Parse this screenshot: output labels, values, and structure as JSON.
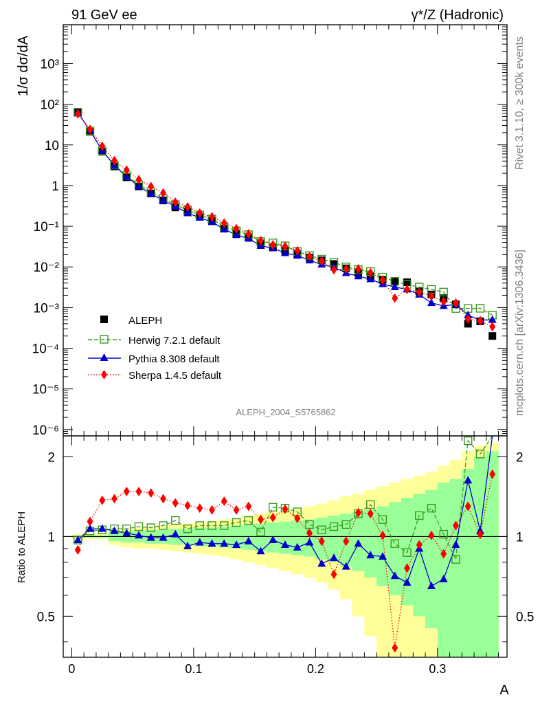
{
  "header": {
    "left": "91 GeV ee",
    "right": "γ*/Z (Hadronic)"
  },
  "side_labels": {
    "rivet": "Rivet 3.1.10, ≥ 300k events",
    "mcplots": "mcplots.cern.ch [arXiv:1306.3436]"
  },
  "analysis_id": "ALEPH_2004_S5765862",
  "colors": {
    "data": "#000000",
    "herwig": "#3a9a1e",
    "pythia": "#0000cc",
    "sherpa": "#ff0000",
    "band_yellow": "#ffff99",
    "band_green": "#99ff99"
  },
  "chart_data": [
    {
      "type": "scatter",
      "title": "",
      "xlabel": "A",
      "ylabel": "1/σ  dσ/dA",
      "xlim": [
        -0.007,
        0.357
      ],
      "ylim": [
        7e-07,
        9000
      ],
      "yscale": "log",
      "x_ticks": [
        "0",
        "0.1",
        "0.2",
        "0.3"
      ],
      "y_ticks": [
        "10⁻⁶",
        "10⁻⁵",
        "10⁻⁴",
        "10⁻³",
        "10⁻²",
        "10⁻¹",
        "1",
        "10",
        "10²",
        "10³"
      ],
      "legend_position": "lower-left",
      "x": [
        0.005,
        0.015,
        0.025,
        0.035,
        0.045,
        0.055,
        0.065,
        0.075,
        0.085,
        0.095,
        0.105,
        0.115,
        0.125,
        0.135,
        0.145,
        0.155,
        0.165,
        0.175,
        0.185,
        0.195,
        0.205,
        0.215,
        0.225,
        0.235,
        0.245,
        0.255,
        0.265,
        0.275,
        0.285,
        0.295,
        0.305,
        0.315,
        0.325,
        0.335,
        0.345
      ],
      "series": [
        {
          "name": "ALEPH",
          "values": [
            65,
            21,
            6.8,
            2.95,
            1.6,
            0.95,
            0.64,
            0.43,
            0.29,
            0.23,
            0.17,
            0.135,
            0.087,
            0.065,
            0.052,
            0.038,
            0.03,
            0.025,
            0.021,
            0.017,
            0.0145,
            0.0118,
            0.0092,
            0.0071,
            0.0059,
            0.0048,
            0.0045,
            0.0042,
            0.0025,
            0.0021,
            0.0017,
            0.0012,
            0.0004,
            0.00046,
            0.0002
          ]
        },
        {
          "name": "Herwig 7.2.1 default",
          "values": [
            63,
            22,
            7.2,
            3.2,
            1.75,
            1.05,
            0.71,
            0.48,
            0.34,
            0.25,
            0.19,
            0.15,
            0.098,
            0.077,
            0.062,
            0.042,
            0.039,
            0.033,
            0.024,
            0.019,
            0.0155,
            0.013,
            0.01,
            0.0086,
            0.0077,
            0.0056,
            0.0044,
            0.0037,
            0.0032,
            0.0028,
            0.0024,
            0.00095,
            0.00095,
            0.00096,
            0.00065
          ]
        },
        {
          "name": "Pythia 8.308 default",
          "values": [
            63,
            22.5,
            7.3,
            3.1,
            1.65,
            0.96,
            0.63,
            0.43,
            0.31,
            0.21,
            0.163,
            0.127,
            0.085,
            0.061,
            0.05,
            0.033,
            0.029,
            0.022,
            0.019,
            0.0145,
            0.0115,
            0.0098,
            0.0071,
            0.0059,
            0.005,
            0.0038,
            0.0032,
            0.0028,
            0.0021,
            0.0013,
            0.0011,
            0.0012,
            0.00065,
            0.00049,
            0.0005
          ]
        },
        {
          "name": "Sherpa 1.4.5 default",
          "values": [
            58,
            24,
            9.3,
            4.1,
            2.4,
            1.4,
            0.95,
            0.66,
            0.39,
            0.3,
            0.21,
            0.17,
            0.12,
            0.087,
            0.065,
            0.044,
            0.035,
            0.032,
            0.025,
            0.018,
            0.014,
            0.0085,
            0.0089,
            0.0089,
            0.0072,
            0.0048,
            0.0017,
            0.0028,
            0.0024,
            0.0019,
            0.0014,
            0.0013,
            0.00052,
            0.00047,
            0.00034
          ]
        }
      ]
    },
    {
      "type": "scatter",
      "title": "",
      "xlabel": "A",
      "ylabel": "Ratio to ALEPH",
      "xlim": [
        -0.007,
        0.357
      ],
      "ylim": [
        0.35,
        2.4
      ],
      "yscale": "log",
      "y_ticks": [
        "0.5",
        "1",
        "2"
      ],
      "x": [
        0.005,
        0.015,
        0.025,
        0.035,
        0.045,
        0.055,
        0.065,
        0.075,
        0.085,
        0.095,
        0.105,
        0.115,
        0.125,
        0.135,
        0.145,
        0.155,
        0.165,
        0.175,
        0.185,
        0.195,
        0.205,
        0.215,
        0.225,
        0.235,
        0.245,
        0.255,
        0.265,
        0.275,
        0.285,
        0.295,
        0.305,
        0.315,
        0.325,
        0.335,
        0.345
      ],
      "bands": {
        "yellow": [
          [
            0.98,
            1.02
          ],
          [
            0.98,
            1.02
          ],
          [
            0.98,
            1.03
          ],
          [
            0.93,
            1.06
          ],
          [
            0.91,
            1.07
          ],
          [
            0.9,
            1.08
          ],
          [
            0.9,
            1.09
          ],
          [
            0.89,
            1.1
          ],
          [
            0.88,
            1.11
          ],
          [
            0.87,
            1.12
          ],
          [
            0.86,
            1.13
          ],
          [
            0.85,
            1.14
          ],
          [
            0.84,
            1.16
          ],
          [
            0.82,
            1.17
          ],
          [
            0.8,
            1.2
          ],
          [
            0.78,
            1.22
          ],
          [
            0.76,
            1.24
          ],
          [
            0.74,
            1.26
          ],
          [
            0.72,
            1.27
          ],
          [
            0.7,
            1.3
          ],
          [
            0.67,
            1.33
          ],
          [
            0.63,
            1.37
          ],
          [
            0.58,
            1.42
          ],
          [
            0.5,
            1.45
          ],
          [
            0.42,
            1.5
          ],
          [
            0.3,
            1.55
          ],
          [
            0.33,
            1.6
          ],
          [
            0.3,
            1.65
          ],
          [
            0.3,
            1.7
          ],
          [
            0.3,
            1.75
          ],
          [
            0.3,
            1.85
          ],
          [
            0.3,
            1.95
          ],
          [
            0.3,
            2.1
          ],
          [
            0.3,
            2.2
          ],
          [
            0.3,
            2.25
          ]
        ],
        "green": [
          [
            0.99,
            1.01
          ],
          [
            0.99,
            1.01
          ],
          [
            0.99,
            1.01
          ],
          [
            0.96,
            1.04
          ],
          [
            0.95,
            1.05
          ],
          [
            0.95,
            1.05
          ],
          [
            0.94,
            1.06
          ],
          [
            0.94,
            1.06
          ],
          [
            0.93,
            1.07
          ],
          [
            0.93,
            1.07
          ],
          [
            0.92,
            1.08
          ],
          [
            0.92,
            1.08
          ],
          [
            0.91,
            1.09
          ],
          [
            0.9,
            1.1
          ],
          [
            0.89,
            1.11
          ],
          [
            0.88,
            1.12
          ],
          [
            0.87,
            1.13
          ],
          [
            0.86,
            1.14
          ],
          [
            0.85,
            1.15
          ],
          [
            0.84,
            1.16
          ],
          [
            0.82,
            1.18
          ],
          [
            0.8,
            1.2
          ],
          [
            0.77,
            1.22
          ],
          [
            0.74,
            1.24
          ],
          [
            0.7,
            1.26
          ],
          [
            0.65,
            1.3
          ],
          [
            0.6,
            1.35
          ],
          [
            0.55,
            1.4
          ],
          [
            0.5,
            1.45
          ],
          [
            0.45,
            1.5
          ],
          [
            0.35,
            1.6
          ],
          [
            0.33,
            1.65
          ],
          [
            0.33,
            1.8
          ],
          [
            0.33,
            2.0
          ],
          [
            0.33,
            2.1
          ]
        ]
      },
      "series": [
        {
          "name": "Herwig 7.2.1 default",
          "values": [
            0.97,
            1.05,
            1.06,
            1.07,
            1.07,
            1.09,
            1.08,
            1.1,
            1.15,
            1.07,
            1.1,
            1.1,
            1.1,
            1.13,
            1.15,
            1.04,
            1.29,
            1.28,
            1.24,
            1.11,
            1.06,
            1.09,
            1.11,
            1.22,
            1.32,
            1.16,
            0.94,
            0.87,
            1.2,
            1.28,
            1.02,
            0.82,
            2.3,
            2.05,
            2.5
          ]
        },
        {
          "name": "Pythia 8.308 default",
          "values": [
            0.97,
            1.07,
            1.07,
            1.05,
            1.03,
            1.01,
            0.99,
            0.99,
            1.02,
            0.92,
            0.95,
            0.94,
            0.94,
            0.93,
            0.96,
            0.88,
            0.97,
            0.93,
            0.91,
            0.95,
            0.79,
            0.83,
            0.77,
            0.94,
            0.85,
            0.84,
            0.71,
            0.67,
            0.9,
            0.65,
            0.69,
            0.93,
            1.63,
            1.05,
            2.5
          ]
        },
        {
          "name": "Sherpa 1.4.5 default",
          "values": [
            0.89,
            1.14,
            1.37,
            1.39,
            1.48,
            1.48,
            1.46,
            1.39,
            1.34,
            1.31,
            1.28,
            1.26,
            1.36,
            1.26,
            1.3,
            1.16,
            1.18,
            1.27,
            1.17,
            1.03,
            0.96,
            0.72,
            0.96,
            1.23,
            1.22,
            1.01,
            0.38,
            0.76,
            0.93,
            1.01,
            0.86,
            1.1,
            1.3,
            1.02,
            1.72
          ]
        }
      ]
    }
  ]
}
